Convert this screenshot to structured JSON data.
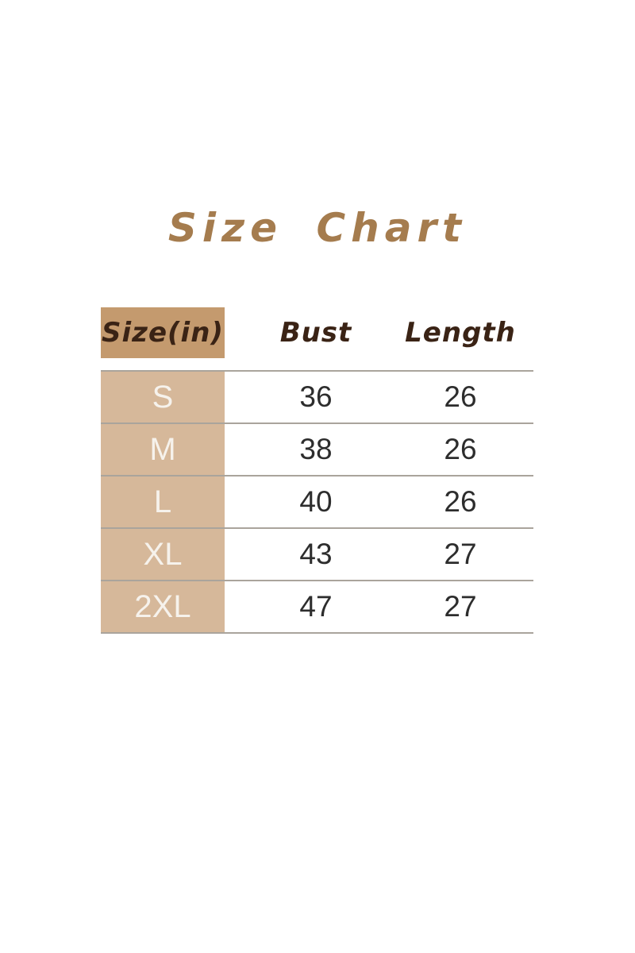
{
  "title": {
    "text": "Size Chart",
    "color": "#a57c4e"
  },
  "table": {
    "columns": [
      "Size(in)",
      "Bust",
      "Length"
    ],
    "rows": [
      {
        "size": "S",
        "bust": "36",
        "length": "26"
      },
      {
        "size": "M",
        "bust": "38",
        "length": "26"
      },
      {
        "size": "L",
        "bust": "40",
        "length": "26"
      },
      {
        "size": "XL",
        "bust": "43",
        "length": "27"
      },
      {
        "size": "2XL",
        "bust": "47",
        "length": "27"
      }
    ],
    "colors": {
      "header_cell_background": "#c49a6e",
      "size_column_background": "#d6b89a",
      "header_text": "#3a2315",
      "size_letter_text": "#f6f2ec",
      "number_text": "#2d2d2d",
      "divider_line": "#aaa49c",
      "title_text": "#a57c4e",
      "page_background": "#ffffff"
    }
  },
  "chart_data": {
    "type": "table",
    "title": "Size Chart",
    "unit": "inches",
    "columns": [
      "Size(in)",
      "Bust",
      "Length"
    ],
    "rows": [
      [
        "S",
        36,
        26
      ],
      [
        "M",
        38,
        26
      ],
      [
        "L",
        40,
        26
      ],
      [
        "XL",
        43,
        27
      ],
      [
        "2XL",
        47,
        27
      ]
    ]
  }
}
